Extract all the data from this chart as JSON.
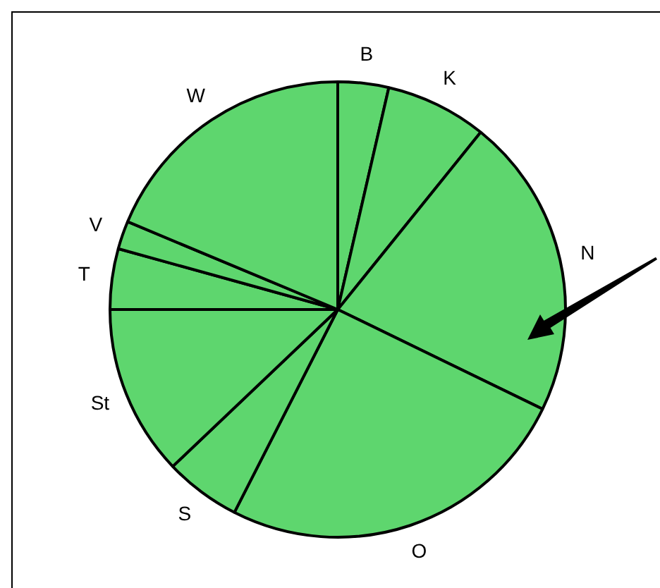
{
  "chart_data": {
    "type": "pie",
    "categories": [
      "B",
      "K",
      "N",
      "O",
      "S",
      "St",
      "T",
      "V",
      "W"
    ],
    "values": [
      3.6,
      7.2,
      21.4,
      25.3,
      5.4,
      12.1,
      4.3,
      2.0,
      18.7
    ],
    "colors": [
      "#5ed66e",
      "#5ed66e",
      "#5ed66e",
      "#5ed66e",
      "#5ed66e",
      "#5ed66e",
      "#5ed66e",
      "#5ed66e",
      "#5ed66e"
    ],
    "legend": false
  }
}
